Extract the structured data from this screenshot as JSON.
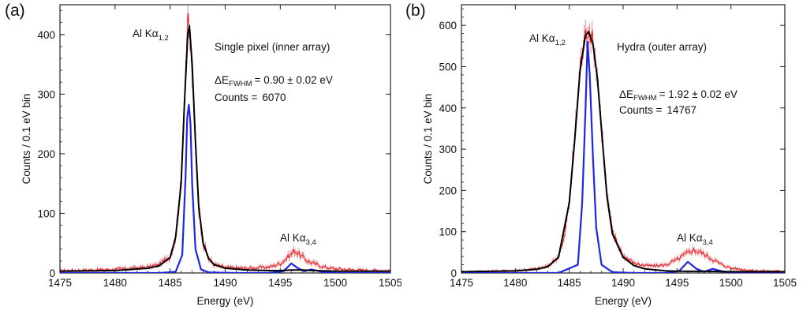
{
  "chart_data": [
    {
      "panel_label": "(a)",
      "type": "line",
      "xlabel": "Energy (eV)",
      "ylabel": "Counts / 0.1 eV bin",
      "xlim": [
        1475,
        1505
      ],
      "ylim": [
        0,
        450
      ],
      "xticks": [
        1475,
        1480,
        1485,
        1490,
        1495,
        1500,
        1505
      ],
      "yticks": [
        0,
        100,
        200,
        300,
        400
      ],
      "grid": false,
      "annotations": {
        "peak1_main": "Al K",
        "peak1_greek": "α",
        "peak1_sub": "1,2",
        "peak2_main": "Al K",
        "peak2_greek": "α",
        "peak2_sub": "3,4",
        "title": "Single pixel (inner array)",
        "fwhm_label": "ΔE",
        "fwhm_sub": "FWHM",
        "fwhm_value": "=  0.90 ± 0.02 eV",
        "counts_label": "Counts =",
        "counts_value": "6070"
      },
      "series": [
        {
          "color": "#e8141b",
          "style": "data-with-errorbars",
          "x": [
            1475,
            1480,
            1483,
            1484,
            1485,
            1485.5,
            1486,
            1486.3,
            1486.6,
            1486.8,
            1487,
            1487.3,
            1487.6,
            1488,
            1488.5,
            1489,
            1490,
            1492,
            1494,
            1495,
            1495.5,
            1496,
            1496.3,
            1496.8,
            1497.5,
            1498,
            1499,
            1500,
            1502,
            1505
          ],
          "y": [
            4,
            6,
            10,
            14,
            28,
            60,
            150,
            300,
            420,
            395,
            335,
            210,
            110,
            50,
            24,
            14,
            9,
            8,
            10,
            16,
            24,
            32,
            38,
            30,
            20,
            16,
            10,
            7,
            5,
            4
          ]
        },
        {
          "color": "#1f26e0",
          "style": "line",
          "x": [
            1475,
            1484,
            1485.5,
            1486.1,
            1486.4,
            1486.55,
            1486.7,
            1486.85,
            1487,
            1487.3,
            1487.8,
            1488.5,
            1491,
            1494,
            1495.3,
            1496,
            1496.6,
            1497.2,
            1497.8,
            1498.3,
            1499,
            1500,
            1505
          ],
          "y": [
            0,
            0,
            2,
            30,
            160,
            260,
            282,
            250,
            150,
            40,
            6,
            1,
            0,
            0,
            3,
            16,
            8,
            3,
            6,
            4,
            1,
            0,
            0
          ]
        },
        {
          "color": "#000000",
          "style": "line",
          "x": [
            1475,
            1480,
            1483,
            1484,
            1485,
            1485.5,
            1486,
            1486.3,
            1486.6,
            1486.75,
            1487,
            1487.3,
            1487.6,
            1488,
            1488.5,
            1489,
            1490,
            1492,
            1494,
            1495,
            1496,
            1497,
            1498,
            1500,
            1505
          ],
          "y": [
            3,
            4,
            8,
            12,
            26,
            60,
            150,
            285,
            400,
            415,
            350,
            220,
            110,
            50,
            24,
            14,
            8,
            5,
            4,
            4,
            5,
            5,
            4,
            3,
            3
          ]
        }
      ]
    },
    {
      "panel_label": "(b)",
      "type": "line",
      "xlabel": "Energy (eV)",
      "ylabel": "Counts / 0.1 eV bin",
      "xlim": [
        1475,
        1505
      ],
      "ylim": [
        0,
        650
      ],
      "xticks": [
        1475,
        1480,
        1485,
        1490,
        1495,
        1500,
        1505
      ],
      "yticks": [
        0,
        100,
        200,
        300,
        400,
        500,
        600
      ],
      "grid": false,
      "annotations": {
        "peak1_main": "Al K",
        "peak1_greek": "α",
        "peak1_sub": "1,2",
        "peak2_main": "Al K",
        "peak2_greek": "α",
        "peak2_sub": "3,4",
        "title": "Hydra (outer array)",
        "fwhm_label": "ΔE",
        "fwhm_sub": "FWHM",
        "fwhm_value": "=  1.92 ± 0.02 eV",
        "counts_label": "Counts =",
        "counts_value": "14767"
      },
      "series": [
        {
          "color": "#e8141b",
          "style": "data-with-errorbars",
          "x": [
            1475,
            1480,
            1482,
            1483,
            1484,
            1484.5,
            1485,
            1485.5,
            1486,
            1486.5,
            1486.8,
            1487.2,
            1487.6,
            1488,
            1488.5,
            1489,
            1490,
            1491,
            1492,
            1493,
            1494,
            1495,
            1495.8,
            1496.5,
            1497.2,
            1498,
            1499,
            1500,
            1502,
            1505
          ],
          "y": [
            3,
            6,
            10,
            16,
            40,
            80,
            170,
            330,
            500,
            580,
            590,
            560,
            480,
            350,
            190,
            100,
            42,
            24,
            18,
            17,
            20,
            32,
            46,
            56,
            50,
            38,
            22,
            12,
            6,
            4
          ]
        },
        {
          "color": "#1f26e0",
          "style": "line",
          "x": [
            1475,
            1484,
            1485.8,
            1486.2,
            1486.5,
            1486.7,
            1486.9,
            1487.2,
            1487.5,
            1488,
            1489,
            1491,
            1494,
            1495.2,
            1496,
            1496.8,
            1497.5,
            1498.3,
            1499.2,
            1500,
            1505
          ],
          "y": [
            0,
            0,
            20,
            170,
            390,
            560,
            480,
            280,
            110,
            20,
            2,
            0,
            0,
            5,
            27,
            10,
            3,
            10,
            4,
            1,
            0
          ]
        },
        {
          "color": "#000000",
          "style": "line",
          "x": [
            1475,
            1480,
            1482,
            1483,
            1484,
            1485,
            1485.5,
            1486,
            1486.5,
            1486.8,
            1487.2,
            1487.6,
            1488,
            1488.5,
            1489,
            1490,
            1491,
            1492,
            1494,
            1496,
            1498,
            1500,
            1505
          ],
          "y": [
            3,
            5,
            9,
            15,
            38,
            170,
            320,
            490,
            575,
            585,
            555,
            475,
            345,
            185,
            95,
            38,
            18,
            10,
            5,
            4,
            4,
            3,
            3
          ]
        }
      ]
    }
  ]
}
